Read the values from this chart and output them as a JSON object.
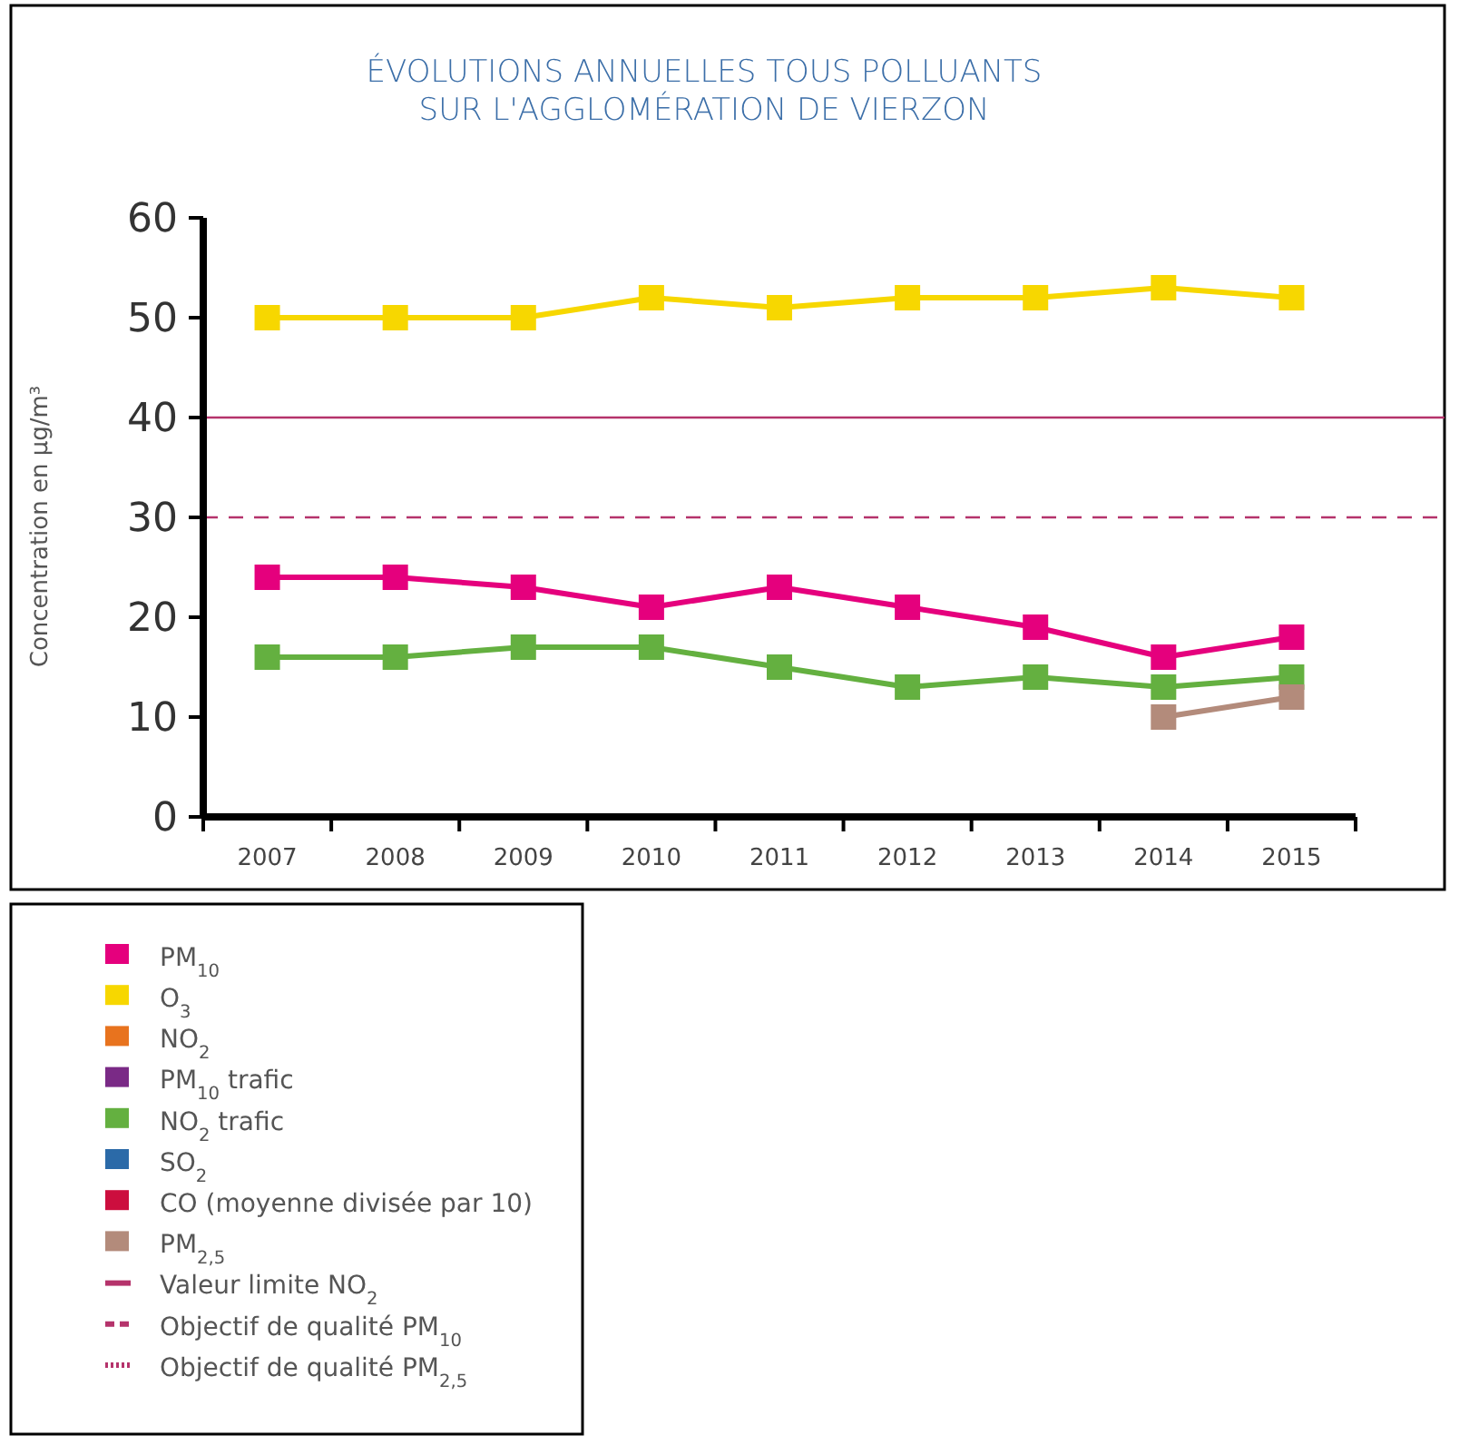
{
  "chart_data": {
    "type": "line",
    "title": "ÉVOLUTIONS ANNUELLES TOUS POLLUANTS\nSUR L'AGGLOMÉRATION DE VIERZON",
    "ylabel": "Concentration en µg/m³",
    "categories": [
      "2007",
      "2008",
      "2009",
      "2010",
      "2011",
      "2012",
      "2013",
      "2014",
      "2015"
    ],
    "series": [
      {
        "name": "PM$_{10}$",
        "color": "#e5007d",
        "values": [
          24,
          24,
          23,
          21,
          23,
          21,
          19,
          16,
          18
        ]
      },
      {
        "name": "O$_{3}$",
        "color": "#f7d700",
        "values": [
          50,
          50,
          50,
          52,
          51,
          52,
          52,
          53,
          52
        ]
      },
      {
        "name": "NO$_{2}$",
        "color": "#e8731e",
        "values": [
          null,
          null,
          null,
          null,
          null,
          null,
          null,
          null,
          null
        ]
      },
      {
        "name": "PM$_{10}$ trafic",
        "color": "#7a2a86",
        "values": [
          null,
          null,
          null,
          null,
          null,
          null,
          null,
          null,
          null
        ]
      },
      {
        "name": "NO$_{2}$ trafic",
        "color": "#64b040",
        "values": [
          16,
          16,
          17,
          17,
          15,
          13,
          14,
          13,
          14
        ]
      },
      {
        "name": "SO$_{2}$",
        "color": "#2b6aa8",
        "values": [
          null,
          null,
          null,
          null,
          null,
          null,
          null,
          null,
          null
        ]
      },
      {
        "name": "CO (moyenne divisée par 10)",
        "color": "#cc0e3e",
        "values": [
          null,
          null,
          null,
          null,
          null,
          null,
          null,
          null,
          null
        ]
      },
      {
        "name": "PM$_{2,5}$",
        "color": "#b38b7b",
        "values": [
          null,
          null,
          null,
          null,
          null,
          null,
          null,
          10,
          12
        ]
      }
    ],
    "ylim": [
      0,
      60
    ],
    "yticks": [
      0,
      10,
      20,
      30,
      40,
      50,
      60
    ],
    "marker": "square",
    "legend": "bottom left",
    "grid": false,
    "ref_lines": [
      {
        "axis": "y",
        "value": 40,
        "label": "Valeur limite NO$_{2}$",
        "color": "#b5336b",
        "line_style": "solid"
      },
      {
        "axis": "y",
        "value": 30,
        "label": "Objectif de qualité PM$_{10}$",
        "color": "#b5336b",
        "line_style": "dashed"
      },
      {
        "axis": "y",
        "value": null,
        "label": "Objectif de qualité PM$_{2,5}$",
        "color": "#b5336b",
        "line_style": "dotted"
      }
    ]
  }
}
